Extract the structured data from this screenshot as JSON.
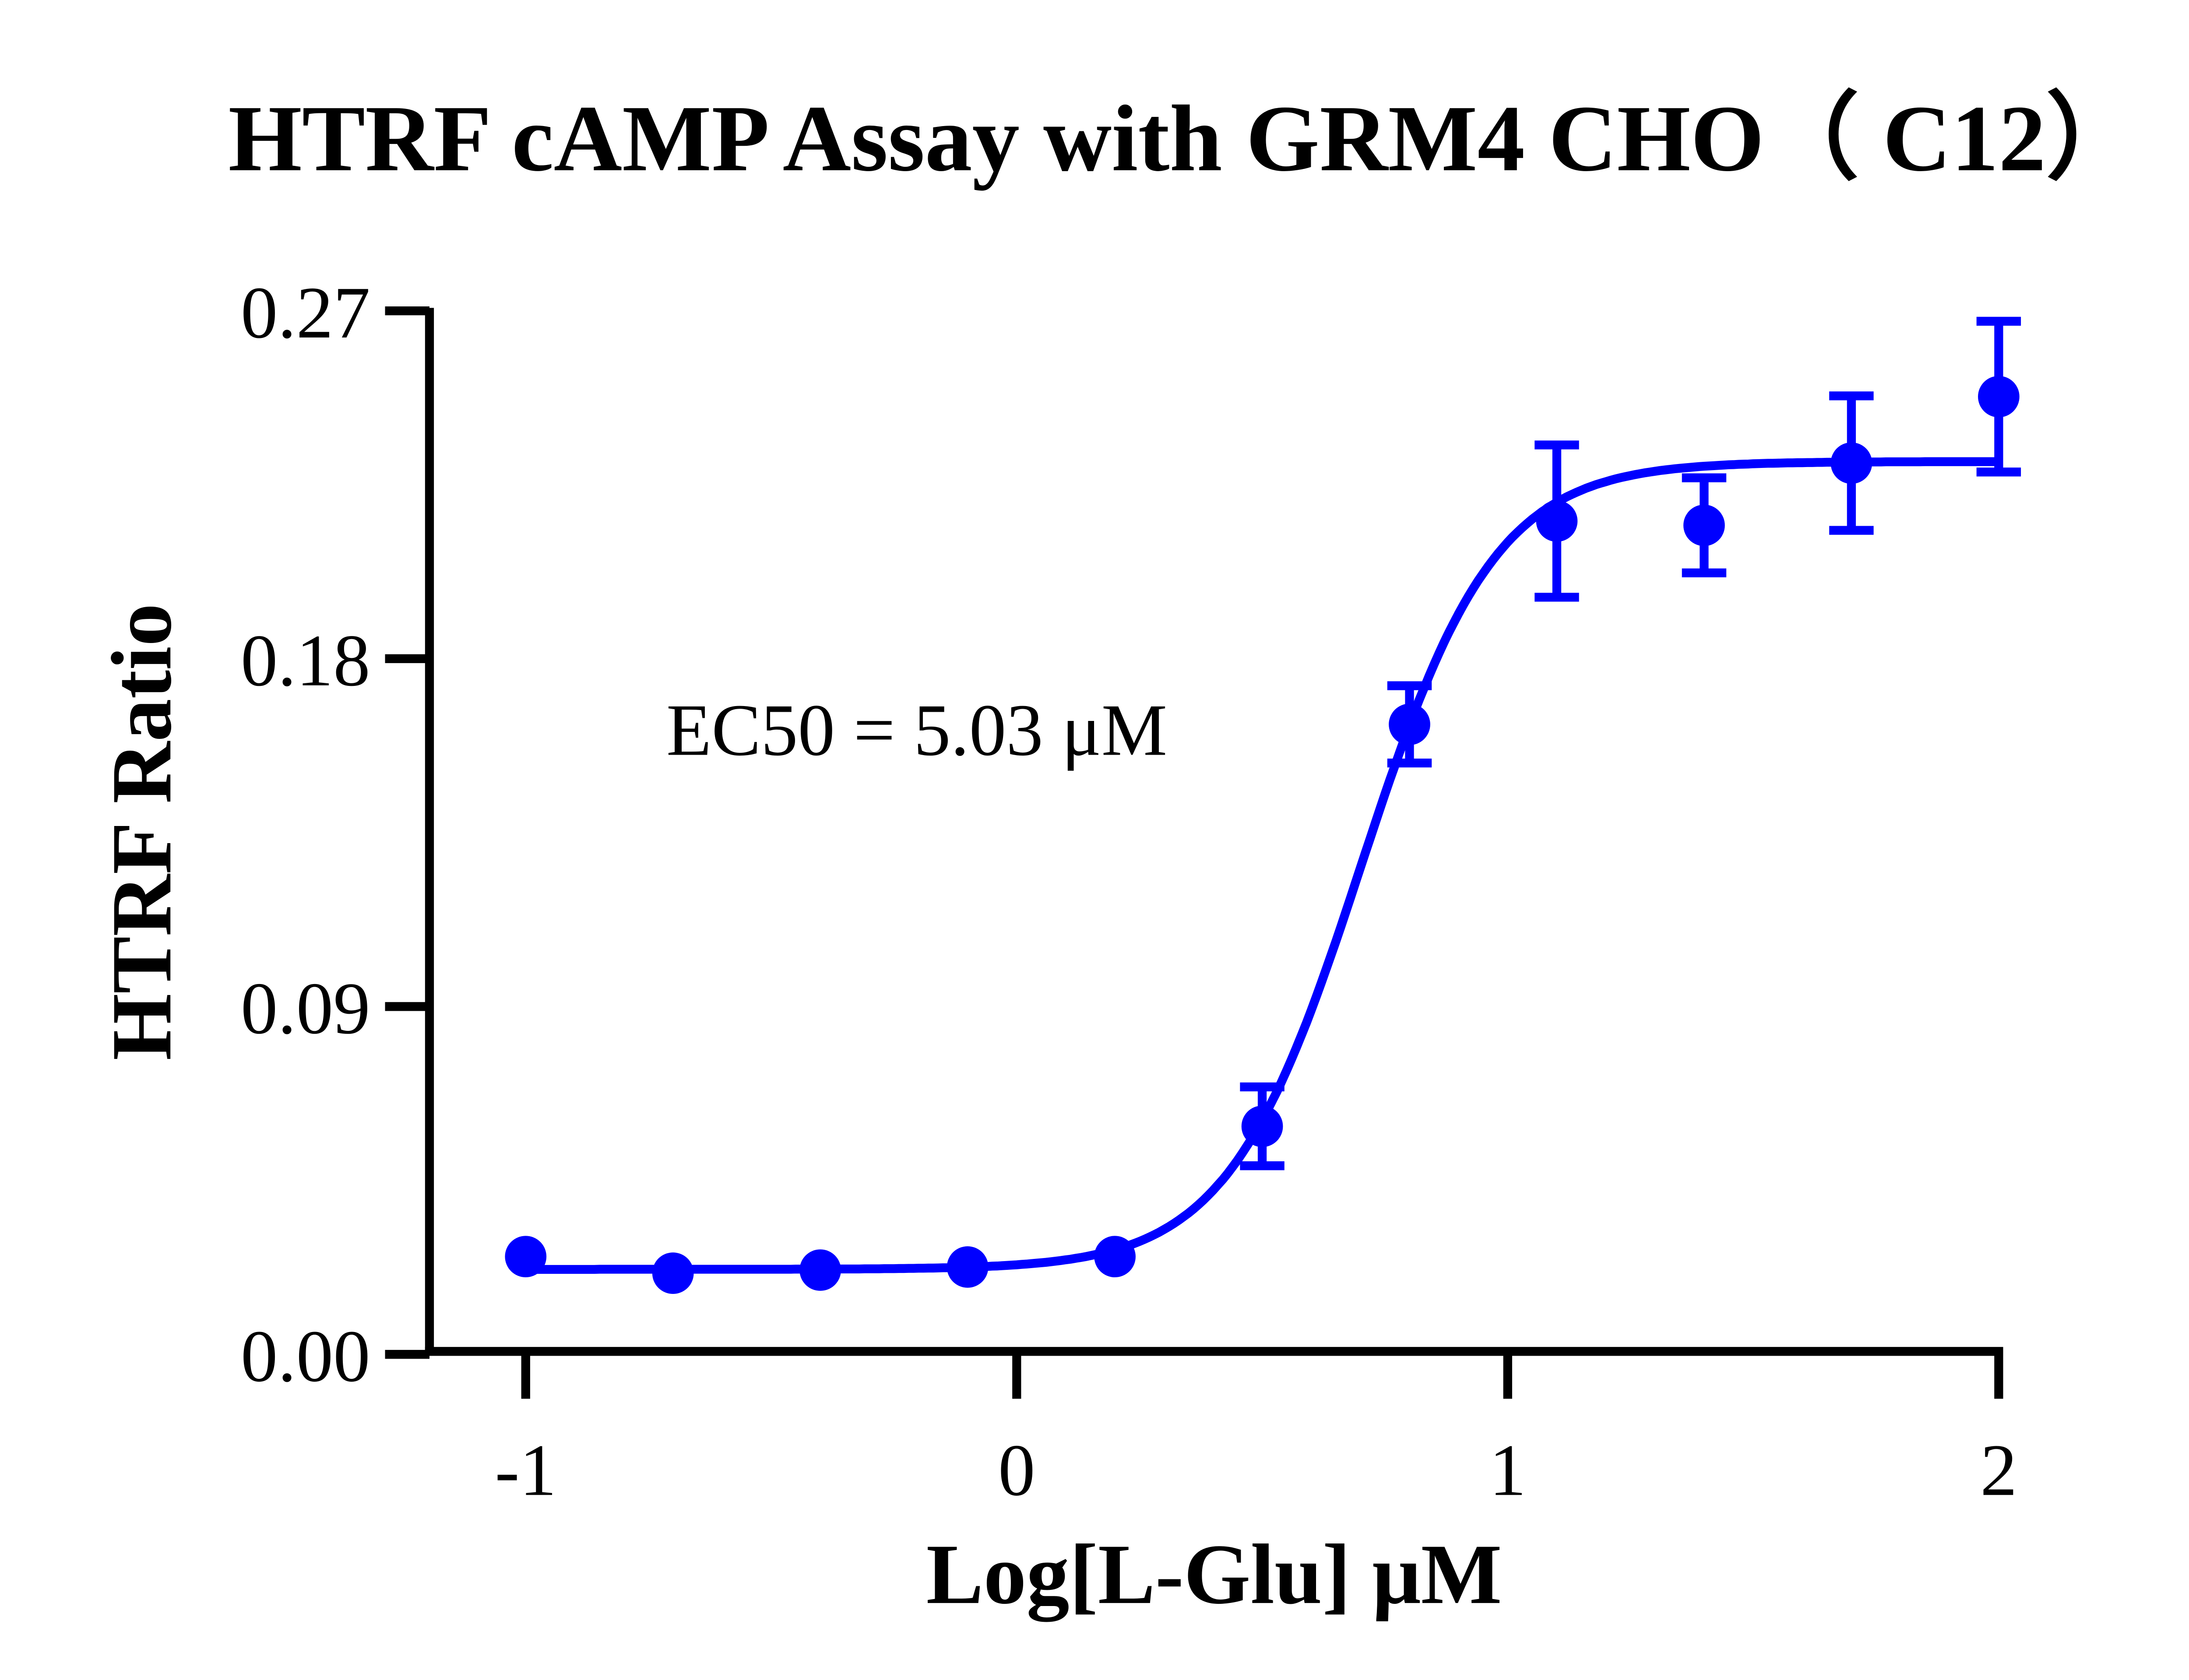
{
  "chart_data": {
    "type": "scatter",
    "title": "HTRF cAMP Assay with GRM4 CHO（ C12）",
    "xlabel": "Log[L-Glu] μM",
    "ylabel": "HTRF Ratio",
    "xlim": [
      -1.2,
      2.05
    ],
    "ylim": [
      0,
      0.27
    ],
    "x_ticks": [
      "-1",
      "0",
      "1",
      "2"
    ],
    "y_ticks": [
      "0.00",
      "0.09",
      "0.18",
      "0.27"
    ],
    "grid": false,
    "annotation": "EC50 = 5.03 μM",
    "color": "#0000ff",
    "series": [
      {
        "x": [
          -1,
          -0.7,
          -0.4,
          -0.1,
          0.2,
          0.5,
          0.8,
          1.1,
          1.4,
          1.7,
          2.0
        ],
        "y": [
          0.0253,
          0.021,
          0.0218,
          0.0226,
          0.0253,
          0.059,
          0.163,
          0.2156,
          0.2145,
          0.2306,
          0.2478
        ],
        "error": [
          0,
          0,
          0,
          0,
          0,
          0.0102,
          0.01,
          0.0197,
          0.0123,
          0.0174,
          0.0195
        ]
      }
    ],
    "fit": {
      "model": "sigmoidal dose-response",
      "bottom": 0.022,
      "top": 0.231,
      "logEC50": 0.7016,
      "hill": 3.2
    }
  }
}
